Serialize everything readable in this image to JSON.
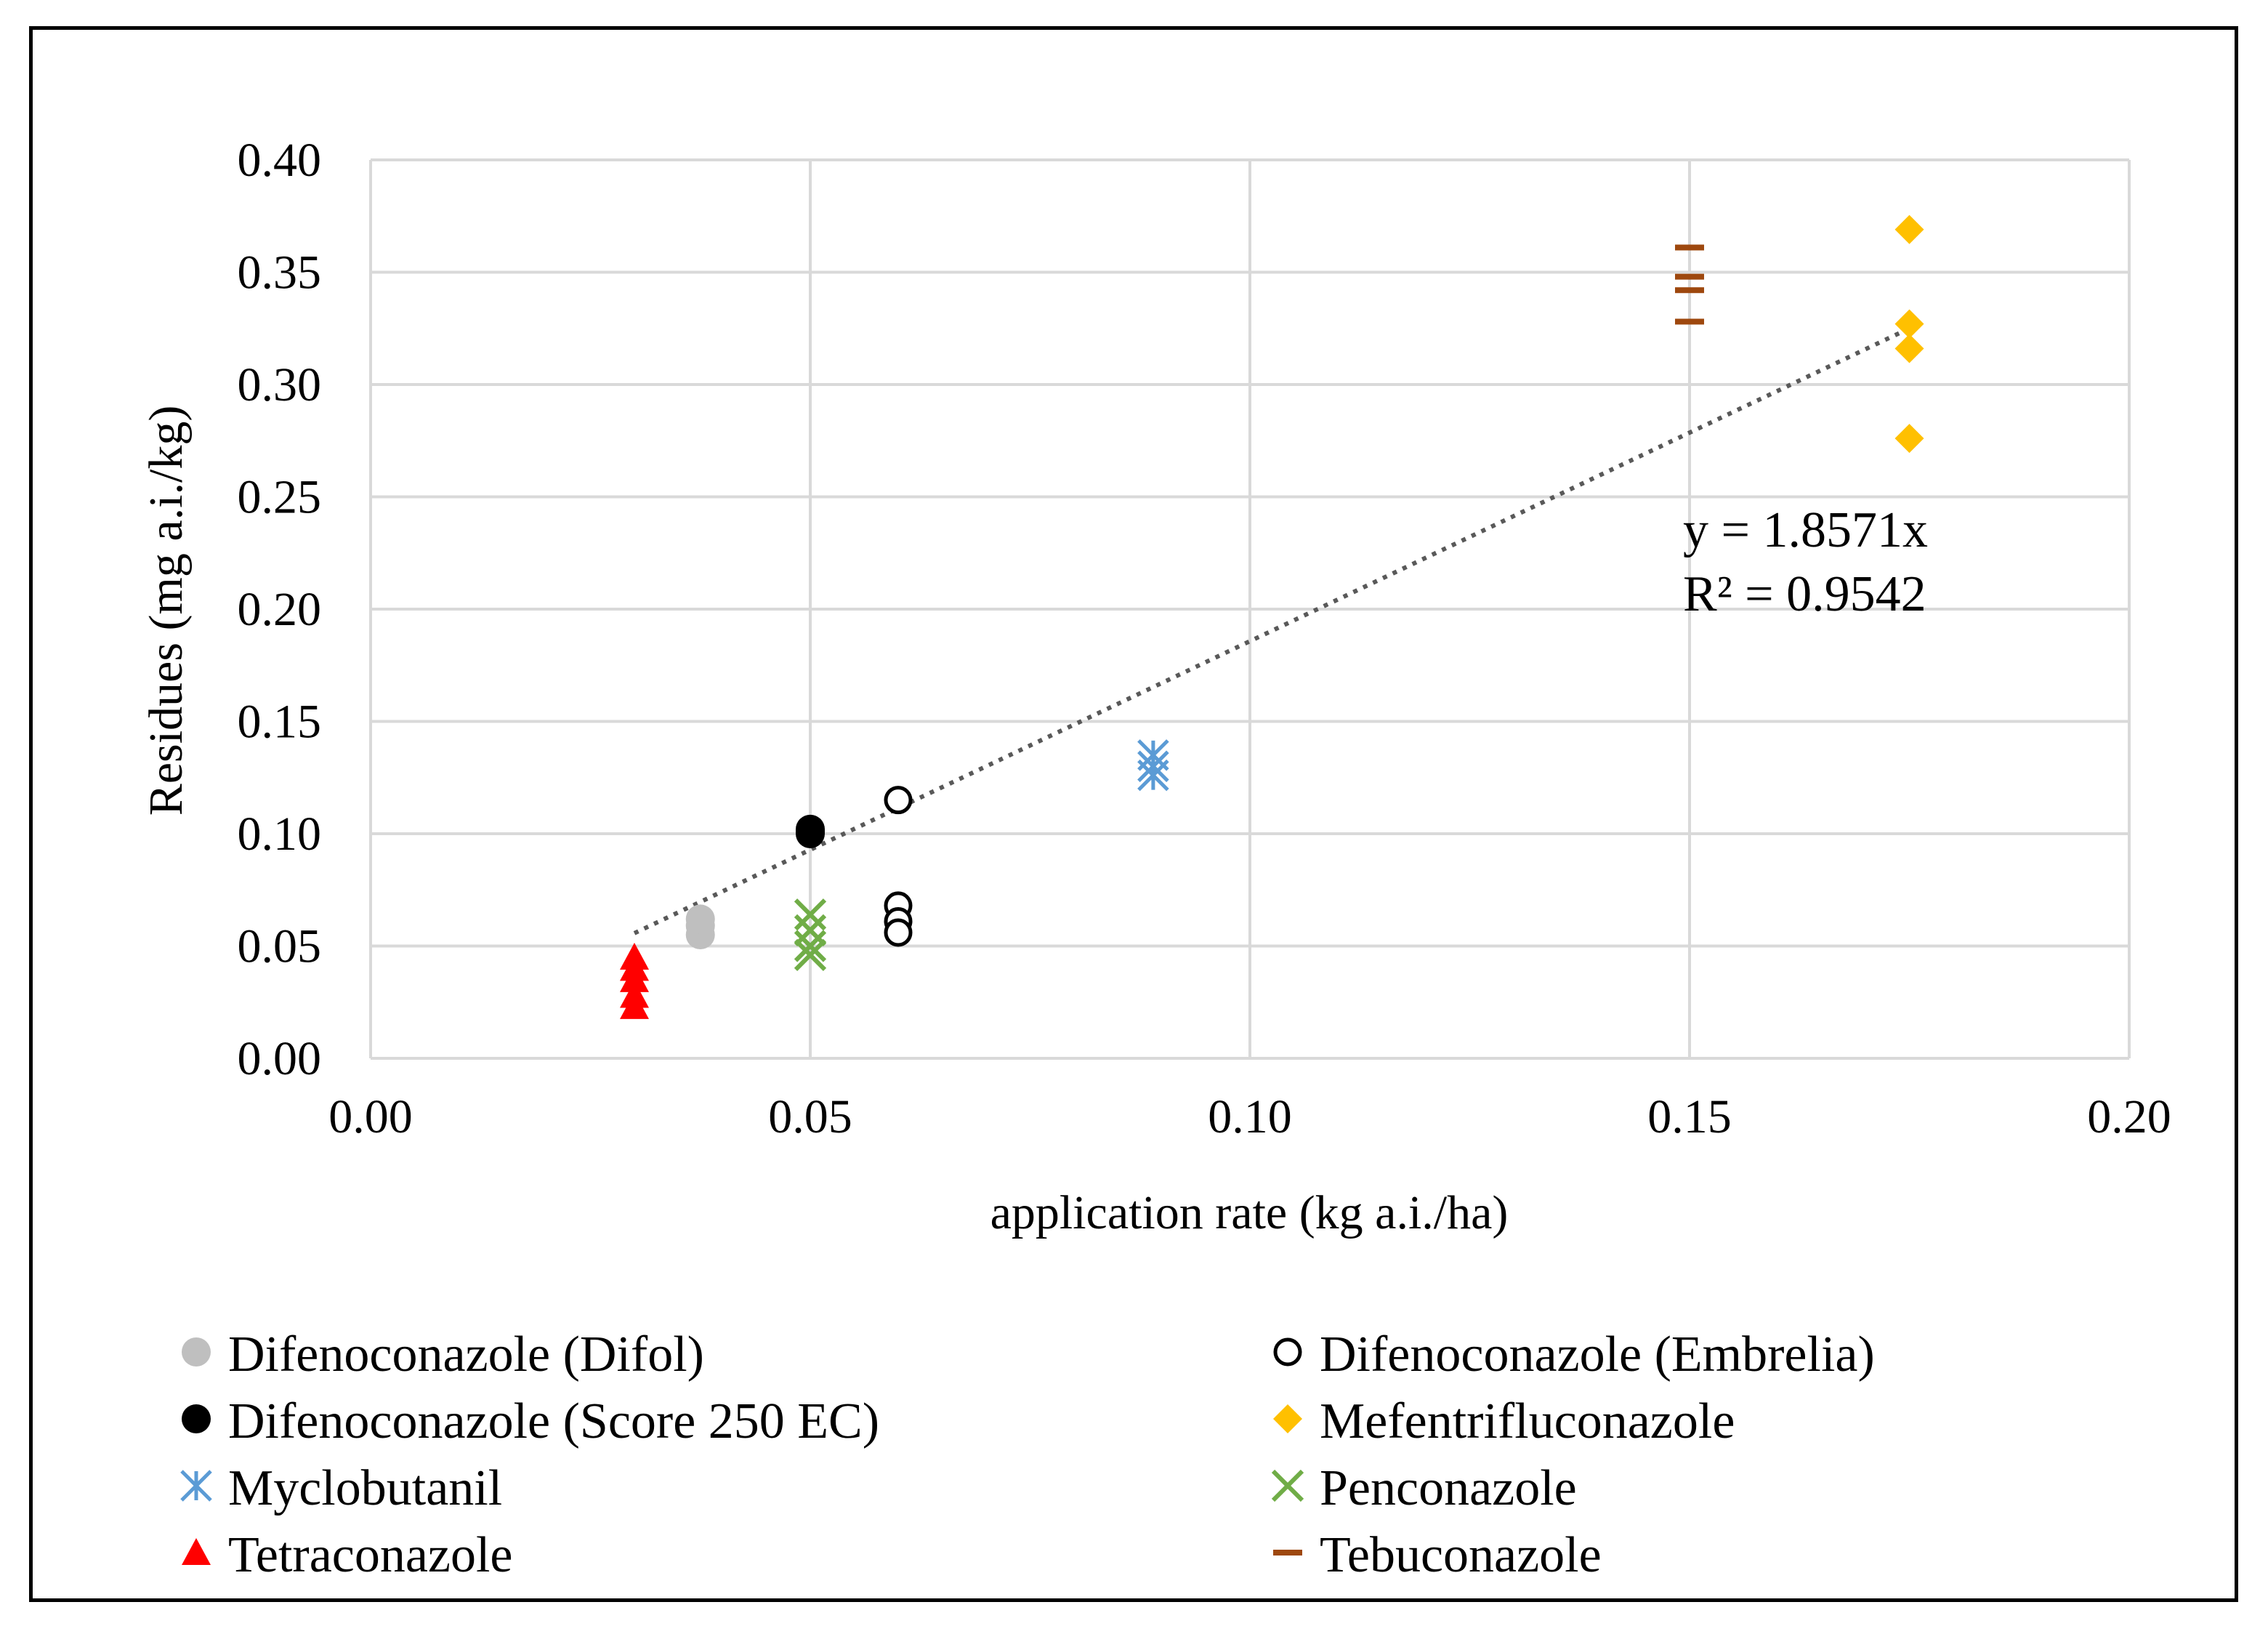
{
  "chart_data": {
    "type": "scatter",
    "title": "",
    "xlabel": "application rate (kg a.i./ha)",
    "ylabel": "Residues (mg a.i./kg)",
    "xlim": [
      0,
      0.2
    ],
    "ylim": [
      0,
      0.4
    ],
    "x_ticks": [
      "0.00",
      "0.05",
      "0.10",
      "0.15",
      "0.20"
    ],
    "y_ticks": [
      "0.00",
      "0.05",
      "0.10",
      "0.15",
      "0.20",
      "0.25",
      "0.30",
      "0.35",
      "0.40"
    ],
    "x_tick_values": [
      0,
      0.05,
      0.1,
      0.15,
      0.2
    ],
    "y_tick_values": [
      0,
      0.05,
      0.1,
      0.15,
      0.2,
      0.25,
      0.3,
      0.35,
      0.4
    ],
    "grid": true,
    "legend_position": "bottom",
    "series": [
      {
        "name": "Difenoconazole (Difol)",
        "marker": "circle-filled",
        "color": "#bfbfbf",
        "points": [
          [
            0.0375,
            0.055
          ],
          [
            0.0375,
            0.059
          ],
          [
            0.0375,
            0.062
          ]
        ]
      },
      {
        "name": "Difenoconazole (Embrelia)",
        "marker": "circle-open",
        "color": "#000000",
        "points": [
          [
            0.06,
            0.115
          ],
          [
            0.06,
            0.068
          ],
          [
            0.06,
            0.061
          ],
          [
            0.06,
            0.056
          ]
        ]
      },
      {
        "name": "Difenoconazole (Score 250 EC)",
        "marker": "circle-filled",
        "color": "#000000",
        "points": [
          [
            0.05,
            0.1
          ],
          [
            0.05,
            0.101
          ],
          [
            0.05,
            0.102
          ]
        ]
      },
      {
        "name": "Mefentrifluconazole",
        "marker": "diamond",
        "color": "#ffc000",
        "points": [
          [
            0.175,
            0.369
          ],
          [
            0.175,
            0.327
          ],
          [
            0.175,
            0.316
          ],
          [
            0.175,
            0.276
          ]
        ]
      },
      {
        "name": "Myclobutanil",
        "marker": "asterisk",
        "color": "#5b9bd5",
        "points": [
          [
            0.089,
            0.135
          ],
          [
            0.089,
            0.13
          ],
          [
            0.089,
            0.126
          ]
        ]
      },
      {
        "name": "Penconazole",
        "marker": "x",
        "color": "#70ad47",
        "points": [
          [
            0.05,
            0.064
          ],
          [
            0.05,
            0.057
          ],
          [
            0.05,
            0.05
          ],
          [
            0.05,
            0.046
          ]
        ]
      },
      {
        "name": "Tetraconazole",
        "marker": "triangle",
        "color": "#ff0000",
        "points": [
          [
            0.03,
            0.045
          ],
          [
            0.03,
            0.04
          ],
          [
            0.03,
            0.035
          ],
          [
            0.03,
            0.028
          ],
          [
            0.03,
            0.023
          ]
        ]
      },
      {
        "name": "Tebuconazole",
        "marker": "dash",
        "color": "#9e480e",
        "points": [
          [
            0.15,
            0.361
          ],
          [
            0.15,
            0.348
          ],
          [
            0.15,
            0.342
          ],
          [
            0.15,
            0.328
          ]
        ]
      }
    ],
    "trendline": {
      "type": "linear-through-origin",
      "slope": 1.8571,
      "x_range": [
        0.03,
        0.175
      ],
      "style": "dotted",
      "color": "#595959",
      "equation_label": "y = 1.8571x",
      "r2_label": "R² = 0.9542"
    }
  }
}
